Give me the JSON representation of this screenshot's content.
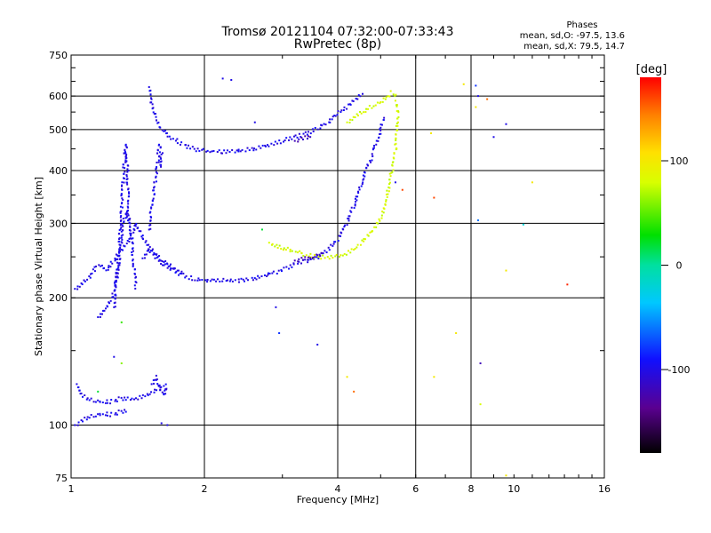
{
  "chart_data": {
    "type": "scatter",
    "title": "Tromsø 20121104 07:32:00-07:33:43",
    "subtitle": "RwPretec (8p)",
    "xlabel": "Frequency [MHz]",
    "ylabel": "Stationary phase Virtual Height [km]",
    "x_scale": "log2",
    "y_scale": "log",
    "xlim": [
      1,
      16
    ],
    "ylim": [
      75,
      750
    ],
    "xticks": [
      1,
      2,
      4,
      6,
      8,
      10,
      16
    ],
    "yticks": [
      75,
      100,
      200,
      300,
      400,
      500,
      600,
      750
    ],
    "xgrid": [
      2,
      4,
      6,
      8
    ],
    "ygrid": [
      100,
      200,
      300,
      400,
      500,
      600
    ],
    "grid": true,
    "phase_info": {
      "heading": "Phases",
      "line_o": "mean, sd,O: -97.5, 13.6",
      "line_x": "mean, sd,X:  79.5, 14.7"
    },
    "colorbar": {
      "label": "[deg]",
      "ticks": [
        100,
        0,
        -100
      ],
      "range": [
        -180,
        180
      ],
      "placement": "right"
    },
    "traces": [
      {
        "type": "curve",
        "phase": -100,
        "pts": [
          [
            1.02,
            210
          ],
          [
            1.05,
            215
          ],
          [
            1.1,
            225
          ],
          [
            1.15,
            240
          ],
          [
            1.2,
            232
          ],
          [
            1.25,
            245
          ],
          [
            1.3,
            260
          ],
          [
            1.35,
            270
          ],
          [
            1.4,
            300
          ],
          [
            1.45,
            280
          ],
          [
            1.5,
            260
          ],
          [
            1.55,
            250
          ],
          [
            1.6,
            240
          ],
          [
            1.7,
            232
          ],
          [
            1.8,
            225
          ],
          [
            1.9,
            222
          ],
          [
            2.0,
            220
          ],
          [
            2.2,
            220
          ],
          [
            2.4,
            220
          ],
          [
            2.6,
            222
          ],
          [
            2.8,
            227
          ],
          [
            3.0,
            233
          ],
          [
            3.2,
            240
          ],
          [
            3.4,
            245
          ],
          [
            3.6,
            250
          ],
          [
            3.8,
            260
          ],
          [
            4.0,
            275
          ],
          [
            4.2,
            300
          ],
          [
            4.4,
            340
          ],
          [
            4.6,
            390
          ],
          [
            4.8,
            440
          ],
          [
            5.0,
            500
          ],
          [
            5.1,
            540
          ]
        ]
      },
      {
        "type": "curve",
        "phase": -100,
        "pts": [
          [
            1.15,
            180
          ],
          [
            1.2,
            190
          ],
          [
            1.25,
            205
          ],
          [
            1.28,
            240
          ],
          [
            1.3,
            280
          ],
          [
            1.33,
            320
          ],
          [
            1.36,
            300
          ],
          [
            1.38,
            250
          ],
          [
            1.4,
            210
          ]
        ]
      },
      {
        "type": "curve",
        "phase": -100,
        "pts": [
          [
            1.25,
            190
          ],
          [
            1.28,
            250
          ],
          [
            1.3,
            330
          ],
          [
            1.32,
            420
          ],
          [
            1.33,
            460
          ],
          [
            1.34,
            400
          ],
          [
            1.35,
            300
          ]
        ]
      },
      {
        "type": "curve",
        "phase": -100,
        "pts": [
          [
            1.5,
            630
          ],
          [
            1.52,
            570
          ],
          [
            1.55,
            530
          ],
          [
            1.6,
            500
          ],
          [
            1.7,
            475
          ],
          [
            1.8,
            460
          ],
          [
            1.9,
            450
          ],
          [
            2.0,
            445
          ],
          [
            2.2,
            443
          ],
          [
            2.4,
            445
          ],
          [
            2.6,
            450
          ],
          [
            2.8,
            460
          ],
          [
            3.0,
            470
          ],
          [
            3.2,
            480
          ],
          [
            3.4,
            490
          ],
          [
            3.6,
            505
          ],
          [
            3.8,
            520
          ],
          [
            4.0,
            545
          ],
          [
            4.2,
            565
          ],
          [
            4.4,
            590
          ],
          [
            4.6,
            610
          ]
        ]
      },
      {
        "type": "curve",
        "phase": -100,
        "pts": [
          [
            1.5,
            290
          ],
          [
            1.52,
            330
          ],
          [
            1.55,
            380
          ],
          [
            1.57,
            420
          ],
          [
            1.58,
            460
          ],
          [
            1.6,
            440
          ],
          [
            1.6,
            400
          ]
        ]
      },
      {
        "type": "curve",
        "phase": -100,
        "pts": [
          [
            1.03,
            125
          ],
          [
            1.05,
            118
          ],
          [
            1.08,
            116
          ],
          [
            1.12,
            114
          ],
          [
            1.18,
            113
          ],
          [
            1.25,
            114
          ],
          [
            1.3,
            116
          ],
          [
            1.35,
            115
          ],
          [
            1.42,
            116
          ],
          [
            1.5,
            118
          ],
          [
            1.55,
            121
          ],
          [
            1.6,
            124
          ],
          [
            1.65,
            122
          ]
        ]
      },
      {
        "type": "curve",
        "phase": -100,
        "pts": [
          [
            1.02,
            100
          ],
          [
            1.05,
            102
          ],
          [
            1.08,
            104
          ],
          [
            1.12,
            105
          ],
          [
            1.18,
            106
          ],
          [
            1.25,
            106
          ],
          [
            1.3,
            108
          ],
          [
            1.35,
            108
          ]
        ]
      },
      {
        "type": "curve",
        "phase": -100,
        "pts": [
          [
            1.52,
            125
          ],
          [
            1.55,
            130
          ],
          [
            1.58,
            122
          ],
          [
            1.6,
            120
          ],
          [
            1.62,
            118
          ],
          [
            1.65,
            125
          ]
        ]
      },
      {
        "type": "curve",
        "phase": -100,
        "pts": [
          [
            1.45,
            248
          ],
          [
            1.5,
            262
          ],
          [
            1.55,
            255
          ],
          [
            1.6,
            245
          ],
          [
            1.65,
            240
          ],
          [
            1.7,
            235
          ],
          [
            1.75,
            232
          ],
          [
            1.8,
            228
          ]
        ]
      },
      {
        "type": "curve",
        "phase": 80,
        "pts": [
          [
            2.8,
            270
          ],
          [
            2.9,
            265
          ],
          [
            3.0,
            262
          ],
          [
            3.2,
            258
          ],
          [
            3.4,
            252
          ],
          [
            3.6,
            250
          ],
          [
            3.8,
            250
          ],
          [
            4.0,
            250
          ],
          [
            4.2,
            255
          ],
          [
            4.4,
            262
          ],
          [
            4.6,
            275
          ],
          [
            4.8,
            290
          ],
          [
            5.0,
            310
          ],
          [
            5.1,
            330
          ],
          [
            5.2,
            360
          ],
          [
            5.3,
            400
          ],
          [
            5.4,
            450
          ],
          [
            5.45,
            500
          ],
          [
            5.5,
            540
          ],
          [
            5.45,
            570
          ],
          [
            5.4,
            585
          ]
        ]
      },
      {
        "type": "curve",
        "phase": 80,
        "pts": [
          [
            4.2,
            520
          ],
          [
            4.4,
            540
          ],
          [
            4.6,
            555
          ],
          [
            4.8,
            570
          ],
          [
            5.0,
            580
          ],
          [
            5.1,
            590
          ],
          [
            5.2,
            600
          ],
          [
            5.3,
            610
          ],
          [
            5.4,
            605
          ],
          [
            5.45,
            595
          ]
        ]
      },
      {
        "type": "curve",
        "phase": -120,
        "pts": [
          [
            3.2,
            245
          ],
          [
            3.3,
            247
          ],
          [
            3.4,
            248
          ],
          [
            3.5,
            250
          ],
          [
            3.6,
            252
          ],
          [
            3.7,
            253
          ]
        ]
      },
      {
        "type": "curve",
        "phase": -120,
        "pts": [
          [
            3.2,
            470
          ],
          [
            3.3,
            475
          ],
          [
            3.4,
            480
          ],
          [
            3.5,
            483
          ]
        ]
      }
    ],
    "points": [
      {
        "x": 2.2,
        "y": 660,
        "phase": -100
      },
      {
        "x": 2.3,
        "y": 655,
        "phase": -100
      },
      {
        "x": 2.6,
        "y": 520,
        "phase": -100
      },
      {
        "x": 2.7,
        "y": 290,
        "phase": 20
      },
      {
        "x": 2.9,
        "y": 190,
        "phase": -100
      },
      {
        "x": 2.95,
        "y": 165,
        "phase": -80
      },
      {
        "x": 3.6,
        "y": 155,
        "phase": -100
      },
      {
        "x": 4.2,
        "y": 130,
        "phase": 100
      },
      {
        "x": 4.35,
        "y": 120,
        "phase": 150
      },
      {
        "x": 5.4,
        "y": 375,
        "phase": -100
      },
      {
        "x": 5.6,
        "y": 360,
        "phase": 160
      },
      {
        "x": 6.5,
        "y": 490,
        "phase": 100
      },
      {
        "x": 6.6,
        "y": 345,
        "phase": 160
      },
      {
        "x": 6.6,
        "y": 130,
        "phase": 100
      },
      {
        "x": 7.4,
        "y": 165,
        "phase": 100
      },
      {
        "x": 7.7,
        "y": 640,
        "phase": 100
      },
      {
        "x": 8.2,
        "y": 635,
        "phase": -80
      },
      {
        "x": 8.3,
        "y": 600,
        "phase": -100
      },
      {
        "x": 8.2,
        "y": 565,
        "phase": 100
      },
      {
        "x": 8.7,
        "y": 590,
        "phase": 150
      },
      {
        "x": 9.0,
        "y": 480,
        "phase": -100
      },
      {
        "x": 9.6,
        "y": 515,
        "phase": -100
      },
      {
        "x": 8.3,
        "y": 305,
        "phase": -60
      },
      {
        "x": 8.4,
        "y": 140,
        "phase": -120
      },
      {
        "x": 8.4,
        "y": 112,
        "phase": 80
      },
      {
        "x": 9.6,
        "y": 232,
        "phase": 100
      },
      {
        "x": 9.6,
        "y": 76,
        "phase": 100
      },
      {
        "x": 10.5,
        "y": 298,
        "phase": -20
      },
      {
        "x": 11,
        "y": 375,
        "phase": 100
      },
      {
        "x": 13.2,
        "y": 215,
        "phase": 170
      },
      {
        "x": 1.3,
        "y": 175,
        "phase": 40
      },
      {
        "x": 1.25,
        "y": 145,
        "phase": -100
      },
      {
        "x": 1.3,
        "y": 140,
        "phase": 60
      },
      {
        "x": 1.15,
        "y": 120,
        "phase": 20
      },
      {
        "x": 1.6,
        "y": 101,
        "phase": -100
      },
      {
        "x": 1.65,
        "y": 100,
        "phase": -100
      }
    ]
  }
}
